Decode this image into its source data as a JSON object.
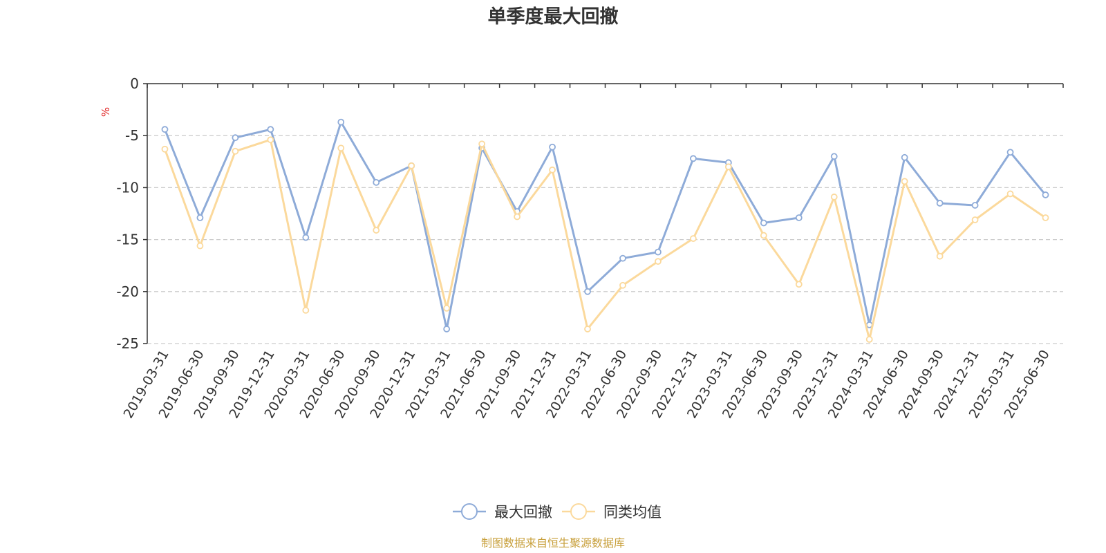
{
  "chart_data": {
    "type": "line",
    "title": "单季度最大回撤",
    "ylabel": "%",
    "ylim": [
      -25,
      0
    ],
    "yticks": [
      0,
      -5,
      -10,
      -15,
      -20,
      -25
    ],
    "grid": true,
    "legend_position": "bottom-center",
    "x": [
      "2019-03-31",
      "2019-06-30",
      "2019-09-30",
      "2019-12-31",
      "2020-03-31",
      "2020-06-30",
      "2020-09-30",
      "2020-12-31",
      "2021-03-31",
      "2021-06-30",
      "2021-09-30",
      "2021-12-31",
      "2022-03-31",
      "2022-06-30",
      "2022-09-30",
      "2022-12-31",
      "2023-03-31",
      "2023-06-30",
      "2023-09-30",
      "2023-12-31",
      "2024-03-31",
      "2024-06-30",
      "2024-09-30",
      "2024-12-31",
      "2025-03-31",
      "2025-06-30"
    ],
    "series": [
      {
        "name": "最大回撤",
        "color": "#8eabd8",
        "values": [
          -4.4,
          -12.9,
          -5.2,
          -4.4,
          -14.8,
          -3.7,
          -9.5,
          -7.9,
          -23.6,
          -6.2,
          -12.3,
          -6.1,
          -20.0,
          -16.8,
          -16.2,
          -7.2,
          -7.6,
          -13.4,
          -12.9,
          -7.0,
          -23.2,
          -7.1,
          -11.5,
          -11.7,
          -6.6,
          -10.7
        ]
      },
      {
        "name": "同类均值",
        "color": "#fbd99c",
        "values": [
          -6.3,
          -15.6,
          -6.5,
          -5.4,
          -21.8,
          -6.2,
          -14.1,
          -7.9,
          -21.6,
          -5.8,
          -12.8,
          -8.3,
          -23.6,
          -19.4,
          -17.1,
          -14.9,
          -8.0,
          -14.6,
          -19.3,
          -10.9,
          -24.6,
          -9.4,
          -16.6,
          -13.1,
          -10.6,
          -12.9
        ]
      }
    ],
    "source": "制图数据来自恒生聚源数据库",
    "unit_color": "#e02020",
    "source_color": "#c8a03c"
  }
}
